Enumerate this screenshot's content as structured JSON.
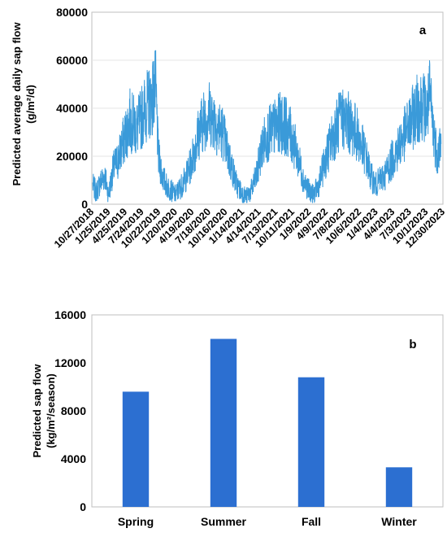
{
  "chart_data": [
    {
      "type": "line",
      "panel_label": "a",
      "ylabel_line1": "Predicted average daily sap flow",
      "ylabel_line2": "(g/m²/d)",
      "ylim": [
        0,
        80000
      ],
      "yticks": [
        "0",
        "20000",
        "40000",
        "60000",
        "80000"
      ],
      "xlim": [
        "2018-10-27",
        "2023-12-30"
      ],
      "xtick_labels": [
        "10/27/2018",
        "1/25/2019",
        "4/25/2019",
        "7/24/2019",
        "10/22/2019",
        "1/20/2020",
        "4/19/2020",
        "7/18/2020",
        "10/16/2020",
        "1/14/2021",
        "4/14/2021",
        "7/13/2021",
        "10/11/2021",
        "1/9/2022",
        "4/9/2022",
        "7/8/2022",
        "10/6/2022",
        "1/4/2023",
        "4/4/2023",
        "7/3/2023",
        "10/1/2023",
        "12/30/2023"
      ],
      "series_color": "#3a9ad9",
      "series": [
        {
          "x": [
            "2018-11-01",
            "2018-11-20",
            "2018-12-10",
            "2019-01-05",
            "2019-01-25",
            "2019-02-20",
            "2019-03-15",
            "2019-04-10",
            "2019-05-01",
            "2019-05-20",
            "2019-06-10",
            "2019-07-01",
            "2019-07-20",
            "2019-08-10",
            "2019-08-31",
            "2019-09-20",
            "2019-10-05",
            "2019-10-20",
            "2019-11-10",
            "2019-12-01",
            "2019-12-25",
            "2020-01-20",
            "2020-02-15",
            "2020-03-10",
            "2020-04-05",
            "2020-04-30",
            "2020-05-25",
            "2020-06-20",
            "2020-07-15",
            "2020-08-10",
            "2020-09-05",
            "2020-10-01",
            "2020-10-25",
            "2020-11-20",
            "2020-12-15",
            "2021-01-10",
            "2021-02-05",
            "2021-03-05",
            "2021-04-01",
            "2021-04-25",
            "2021-05-20",
            "2021-06-15",
            "2021-07-10",
            "2021-08-05",
            "2021-09-01",
            "2021-09-25",
            "2021-10-20",
            "2021-11-15",
            "2021-12-10",
            "2022-01-05",
            "2022-02-01",
            "2022-03-01",
            "2022-03-25",
            "2022-04-20",
            "2022-05-15",
            "2022-06-10",
            "2022-07-05",
            "2022-07-31",
            "2022-08-25",
            "2022-09-20",
            "2022-10-15",
            "2022-11-10",
            "2022-12-05",
            "2023-01-01",
            "2023-01-25",
            "2023-02-20",
            "2023-03-15",
            "2023-04-10",
            "2023-05-05",
            "2023-05-30",
            "2023-06-25",
            "2023-07-20",
            "2023-08-15",
            "2023-09-10",
            "2023-10-05",
            "2023-10-20",
            "2023-11-10",
            "2023-12-01",
            "2023-12-20"
          ],
          "y": [
            8000,
            5000,
            9000,
            12000,
            4000,
            15000,
            18000,
            25000,
            30000,
            35000,
            33000,
            32000,
            36000,
            40000,
            42000,
            45000,
            50000,
            20000,
            12000,
            8000,
            6000,
            4000,
            7000,
            10000,
            15000,
            22000,
            30000,
            35000,
            38000,
            36000,
            32000,
            30000,
            22000,
            15000,
            8000,
            5000,
            3000,
            6000,
            12000,
            22000,
            28000,
            30000,
            32000,
            34000,
            33000,
            30000,
            25000,
            18000,
            10000,
            6000,
            4000,
            8000,
            15000,
            22000,
            28000,
            33000,
            36000,
            35000,
            32000,
            30000,
            25000,
            20000,
            12000,
            8000,
            10000,
            12000,
            16000,
            20000,
            24000,
            28000,
            32000,
            36000,
            40000,
            42000,
            38000,
            45000,
            30000,
            20000,
            28000
          ]
        }
      ]
    },
    {
      "type": "bar",
      "panel_label": "b",
      "ylabel_line1": "Predicted sap flow",
      "ylabel_line2": "(kg/m²/season)",
      "categories": [
        "Spring",
        "Summer",
        "Fall",
        "Winter"
      ],
      "values": [
        9600,
        14000,
        10800,
        3300
      ],
      "ylim": [
        0,
        16000
      ],
      "yticks": [
        "0",
        "4000",
        "8000",
        "12000",
        "16000"
      ],
      "bar_color": "#2c6fd1"
    }
  ]
}
